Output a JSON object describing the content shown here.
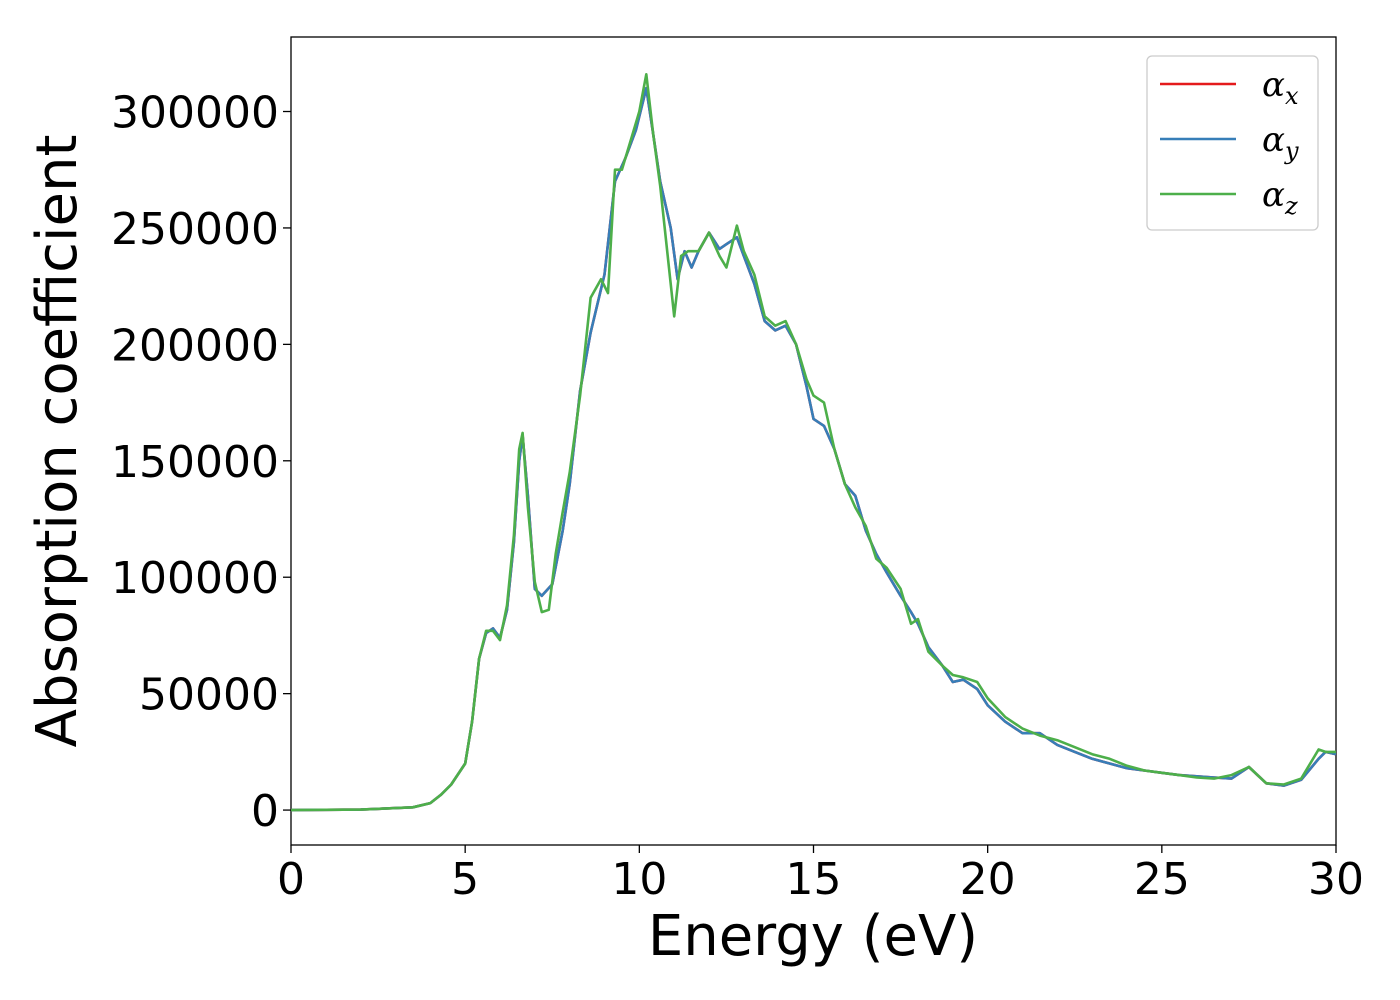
{
  "chart_data": {
    "type": "line",
    "xlabel": "Energy (eV)",
    "ylabel": "Absorption coefficient",
    "xlim": [
      0,
      30
    ],
    "ylim": [
      -15000,
      332000
    ],
    "xticks": [
      0,
      5,
      10,
      15,
      20,
      25,
      30
    ],
    "yticks": [
      0,
      50000,
      100000,
      150000,
      200000,
      250000,
      300000
    ],
    "grid": false,
    "legend_position": "top-right",
    "series": [
      {
        "name": "α_x",
        "base": "α",
        "sub": "x",
        "color": "#e41a1c",
        "x": [
          0,
          2,
          3.5,
          4,
          4.3,
          4.6,
          5,
          5.2,
          5.4,
          5.6,
          5.8,
          6,
          6.2,
          6.4,
          6.55,
          6.65,
          6.8,
          7,
          7.2,
          7.5,
          7.8,
          8,
          8.3,
          8.6,
          9,
          9.3,
          9.6,
          9.9,
          10.2,
          10.4,
          10.6,
          10.9,
          11.1,
          11.3,
          11.5,
          11.7,
          12,
          12.3,
          12.5,
          12.8,
          13,
          13.3,
          13.6,
          13.9,
          14.2,
          14.5,
          14.8,
          15,
          15.3,
          15.6,
          15.9,
          16.2,
          16.5,
          16.8,
          17.1,
          17.5,
          17.8,
          18,
          18.3,
          18.7,
          19,
          19.3,
          19.7,
          20,
          20.5,
          21,
          21.5,
          22,
          22.5,
          23,
          23.5,
          24,
          24.5,
          25,
          25.5,
          26,
          26.5,
          27,
          27.5,
          28,
          28.5,
          29,
          29.5,
          29.7,
          30
        ],
        "y": [
          0,
          200,
          1200,
          3000,
          6500,
          11000,
          20000,
          38000,
          65000,
          76000,
          78000,
          74000,
          86000,
          115000,
          150000,
          161000,
          135000,
          95000,
          92000,
          97000,
          120000,
          140000,
          180000,
          205000,
          230000,
          270000,
          280000,
          292000,
          310000,
          290000,
          270000,
          250000,
          228000,
          240000,
          233000,
          240000,
          248000,
          241000,
          243000,
          246000,
          238000,
          226000,
          210000,
          206000,
          208000,
          200000,
          182000,
          168000,
          165000,
          155000,
          140000,
          135000,
          120000,
          110000,
          102000,
          92000,
          85000,
          80000,
          70000,
          62000,
          55000,
          56000,
          52000,
          45000,
          38000,
          33000,
          33000,
          28000,
          25000,
          22000,
          20000,
          18000,
          17000,
          16000,
          15000,
          14500,
          14000,
          13500,
          18500,
          11500,
          10500,
          13000,
          22000,
          25000,
          24000
        ]
      },
      {
        "name": "α_y",
        "base": "α",
        "sub": "y",
        "color": "#377eb8",
        "x": [
          0,
          2,
          3.5,
          4,
          4.3,
          4.6,
          5,
          5.2,
          5.4,
          5.6,
          5.8,
          6,
          6.2,
          6.4,
          6.55,
          6.65,
          6.8,
          7,
          7.2,
          7.5,
          7.8,
          8,
          8.3,
          8.6,
          9,
          9.3,
          9.6,
          9.9,
          10.2,
          10.4,
          10.6,
          10.9,
          11.1,
          11.3,
          11.5,
          11.7,
          12,
          12.3,
          12.5,
          12.8,
          13,
          13.3,
          13.6,
          13.9,
          14.2,
          14.5,
          14.8,
          15,
          15.3,
          15.6,
          15.9,
          16.2,
          16.5,
          16.8,
          17.1,
          17.5,
          17.8,
          18,
          18.3,
          18.7,
          19,
          19.3,
          19.7,
          20,
          20.5,
          21,
          21.5,
          22,
          22.5,
          23,
          23.5,
          24,
          24.5,
          25,
          25.5,
          26,
          26.5,
          27,
          27.5,
          28,
          28.5,
          29,
          29.5,
          29.7,
          30
        ],
        "y": [
          0,
          200,
          1200,
          3000,
          6500,
          11000,
          20000,
          38000,
          65000,
          76000,
          78000,
          74000,
          86000,
          115000,
          150000,
          161000,
          135000,
          95000,
          92000,
          97000,
          120000,
          140000,
          180000,
          205000,
          230000,
          270000,
          280000,
          292000,
          310000,
          290000,
          270000,
          250000,
          228000,
          240000,
          233000,
          240000,
          248000,
          241000,
          243000,
          246000,
          238000,
          226000,
          210000,
          206000,
          208000,
          200000,
          182000,
          168000,
          165000,
          155000,
          140000,
          135000,
          120000,
          110000,
          102000,
          92000,
          85000,
          80000,
          70000,
          62000,
          55000,
          56000,
          52000,
          45000,
          38000,
          33000,
          33000,
          28000,
          25000,
          22000,
          20000,
          18000,
          17000,
          16000,
          15000,
          14500,
          14000,
          13500,
          18500,
          11500,
          10500,
          13000,
          22000,
          25000,
          24000
        ]
      },
      {
        "name": "α_z",
        "base": "α",
        "sub": "z",
        "color": "#4daf4a",
        "x": [
          0,
          2,
          3.5,
          4,
          4.3,
          4.6,
          5,
          5.2,
          5.4,
          5.6,
          5.8,
          6,
          6.2,
          6.4,
          6.55,
          6.65,
          6.8,
          7,
          7.2,
          7.4,
          7.6,
          7.8,
          8,
          8.3,
          8.6,
          8.9,
          9.1,
          9.3,
          9.5,
          9.8,
          10,
          10.2,
          10.4,
          10.6,
          10.8,
          11,
          11.2,
          11.4,
          11.7,
          12,
          12.3,
          12.5,
          12.8,
          13,
          13.3,
          13.6,
          13.9,
          14.2,
          14.5,
          14.8,
          15,
          15.3,
          15.6,
          15.9,
          16.2,
          16.5,
          16.8,
          17.1,
          17.5,
          17.8,
          18,
          18.3,
          18.7,
          19,
          19.3,
          19.7,
          20,
          20.5,
          21,
          21.5,
          22,
          22.5,
          23,
          23.5,
          24,
          24.5,
          25,
          25.5,
          26,
          26.5,
          27,
          27.5,
          28,
          28.5,
          29,
          29.5,
          29.7,
          30
        ],
        "y": [
          0,
          200,
          1200,
          3000,
          6500,
          11000,
          20000,
          38000,
          65000,
          77000,
          77000,
          73000,
          88000,
          118000,
          155000,
          162000,
          130000,
          98000,
          85000,
          86000,
          110000,
          128000,
          145000,
          178000,
          220000,
          228000,
          222000,
          275000,
          275000,
          290000,
          300000,
          316000,
          290000,
          268000,
          240000,
          212000,
          238000,
          240000,
          240000,
          248000,
          238000,
          233000,
          251000,
          240000,
          230000,
          212000,
          208000,
          210000,
          200000,
          185000,
          178000,
          175000,
          155000,
          140000,
          130000,
          122000,
          108000,
          104000,
          95000,
          80000,
          82000,
          68000,
          62000,
          58000,
          57000,
          55000,
          48000,
          40000,
          35000,
          32000,
          30000,
          27000,
          24000,
          22000,
          19000,
          17000,
          16000,
          15000,
          14000,
          13500,
          15000,
          18500,
          11500,
          11000,
          13500,
          26000,
          25000,
          25000
        ]
      }
    ]
  }
}
